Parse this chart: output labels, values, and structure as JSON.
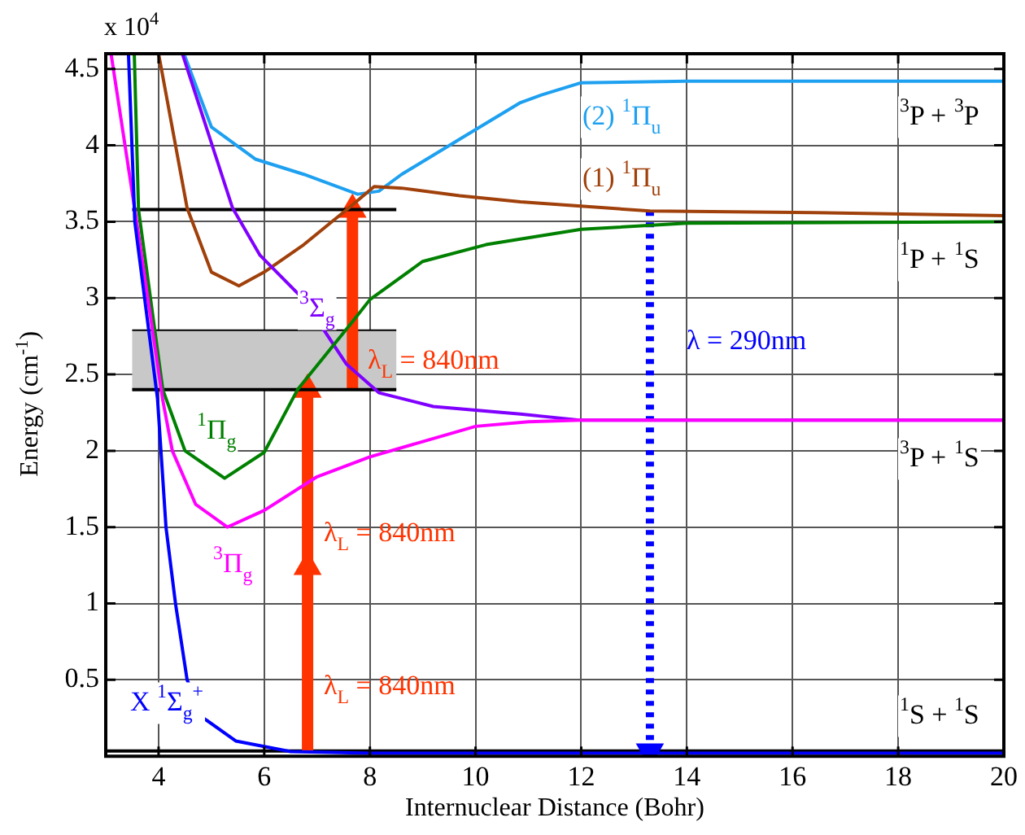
{
  "chart_data": {
    "type": "line",
    "xlabel": "Internuclear Distance (Bohr)",
    "ylabel": "Energy (cm$^{-1}$)",
    "xlim": [
      3,
      20
    ],
    "xticks": [
      4,
      6,
      8,
      10,
      12,
      14,
      16,
      18,
      20
    ],
    "ylim": [
      0,
      4.6
    ],
    "yticks": [
      0.5,
      1,
      1.5,
      2,
      2.5,
      3,
      3.5,
      4,
      4.5
    ],
    "grid": true,
    "series": [
      {
        "name": "X $^{1}$Σ$_{g}$$^{+}$",
        "color": "#0000ff",
        "x": [
          3.43,
          3.55,
          3.98,
          4.14,
          4.32,
          4.54,
          4.85,
          5.46,
          6.5,
          8,
          20
        ],
        "values": [
          4.6,
          3.5,
          2.34,
          1.5,
          1,
          0.5,
          0.25,
          0.1,
          0.03,
          0.02,
          0.02
        ]
      },
      {
        "name": "$^{3}$Π$_{g}$",
        "color": "#ff00ff",
        "x": [
          3.1,
          3.55,
          4.08,
          4.26,
          4.7,
          5.3,
          6,
          7,
          8,
          9,
          10,
          11,
          12,
          20
        ],
        "values": [
          4.6,
          3.58,
          2.33,
          2,
          1.65,
          1.5,
          1.61,
          1.83,
          1.96,
          2.06,
          2.16,
          2.19,
          2.2,
          2.2
        ]
      },
      {
        "name": "$^{1}$Π$_{g}$",
        "color": "#008000",
        "x": [
          3.54,
          3.62,
          4.08,
          4.5,
          5.25,
          6,
          6.63,
          7.68,
          8,
          9,
          10.2,
          12,
          14,
          20
        ],
        "values": [
          4.6,
          3.58,
          2.4,
          2.0,
          1.82,
          1.99,
          2.4,
          2.85,
          2.99,
          3.24,
          3.35,
          3.45,
          3.49,
          3.5
        ]
      },
      {
        "name": "$^{3}$Σ$_{g}$",
        "color": "#8000ff",
        "x": [
          4.45,
          5.4,
          5.92,
          6.75,
          7.55,
          8.17,
          9.2,
          10.85,
          12,
          20
        ],
        "values": [
          4.6,
          3.59,
          3.28,
          2.99,
          2.57,
          2.38,
          2.29,
          2.24,
          2.2,
          2.2
        ]
      },
      {
        "name": "(1) $^{1}$Π$_{u}$",
        "color": "#a0400a",
        "x": [
          4,
          4.54,
          5,
          5.52,
          6,
          6.75,
          7.6,
          8.08,
          8.6,
          9.7,
          10.85,
          13.3,
          16.4,
          20
        ],
        "values": [
          4.6,
          3.59,
          3.17,
          3.08,
          3.17,
          3.35,
          3.59,
          3.73,
          3.72,
          3.67,
          3.63,
          3.57,
          3.56,
          3.54
        ]
      },
      {
        "name": "(2) $^{1}$Π$_{u}$",
        "color": "#1ea0f0",
        "x": [
          4.48,
          5,
          5.83,
          6.75,
          7.77,
          8.17,
          8.6,
          9.7,
          10.85,
          11.25,
          12,
          14,
          20
        ],
        "values": [
          4.6,
          4.12,
          3.91,
          3.81,
          3.68,
          3.7,
          3.81,
          4.04,
          4.28,
          4.33,
          4.41,
          4.42,
          4.42
        ]
      },
      {
        "color": "#000000",
        "x": [
          3.5,
          8.5
        ],
        "values": [
          3.58,
          3.58
        ]
      },
      {
        "color": "#000000",
        "x": [
          3.5,
          8.5
        ],
        "values": [
          2.4,
          2.4
        ],
        "lower": [
          2.4,
          2.4
        ],
        "upper": [
          2.79,
          2.79
        ]
      },
      {
        "name": "λ$_{L}$ = 840nm",
        "color": "#ff3300",
        "x": [
          6.82,
          6.82
        ],
        "values": [
          0.03,
          1.24
        ],
        "marker": "triangle"
      },
      {
        "name": "λ$_{L}$ = 840nm",
        "color": "#ff3300",
        "x": [
          6.82,
          6.82
        ],
        "values": [
          1.24,
          2.4
        ],
        "marker": "triangle"
      },
      {
        "name": "λ$_{L}$ = 840nm",
        "color": "#ff3300",
        "x": [
          7.67,
          7.67
        ],
        "values": [
          2.4,
          3.58
        ],
        "marker": "triangle"
      },
      {
        "name": "λ = 290nm",
        "color": "#0000ff",
        "x": [
          13.3,
          13.3
        ],
        "values": [
          3.57,
          0.03
        ],
        "marker": "triangle",
        "line_style": "dotted"
      }
    ],
    "ref_lines": [
      {
        "axis": "y",
        "value": 0.035,
        "color": "#000000"
      }
    ],
    "annotations": [
      "x 10$^{4}$",
      "$^{3}$P + $^{3}$P",
      "$^{1}$P + $^{1}$S",
      "$^{3}$P + $^{1}$S",
      "$^{1}$S + $^{1}$S"
    ]
  }
}
